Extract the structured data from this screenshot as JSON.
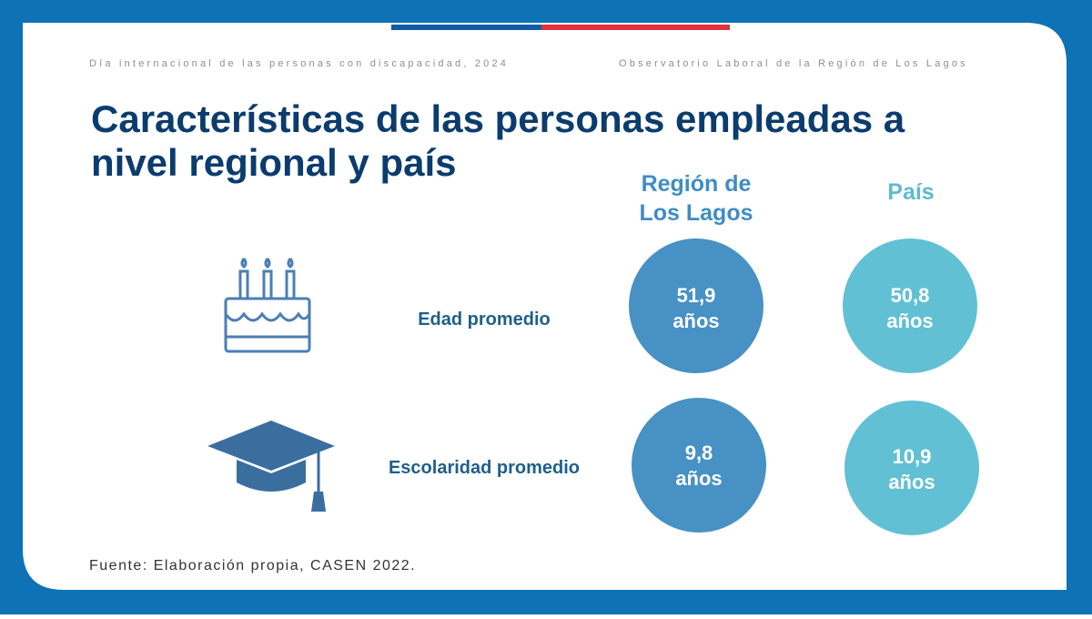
{
  "header": {
    "left": "Día internacional de las personas con discapacidad, 2024",
    "right": "Observatorio Laboral de la Región de Los Lagos"
  },
  "title": {
    "line1": "Características de las personas empleadas a",
    "line2": "nivel regional y país"
  },
  "columns": [
    {
      "line1": "Región de",
      "line2": "Los Lagos"
    },
    {
      "line1": "País"
    }
  ],
  "rows": [
    {
      "label": "Edad promedio",
      "cells": [
        {
          "value": "51,9",
          "unit": "años"
        },
        {
          "value": "50,8",
          "unit": "años"
        }
      ]
    },
    {
      "label": "Escolaridad promedio",
      "cells": [
        {
          "value": "9,8",
          "unit": "años"
        },
        {
          "value": "10,9",
          "unit": "años"
        }
      ]
    }
  ],
  "source": "Fuente: Elaboración propia, CASEN 2022."
}
